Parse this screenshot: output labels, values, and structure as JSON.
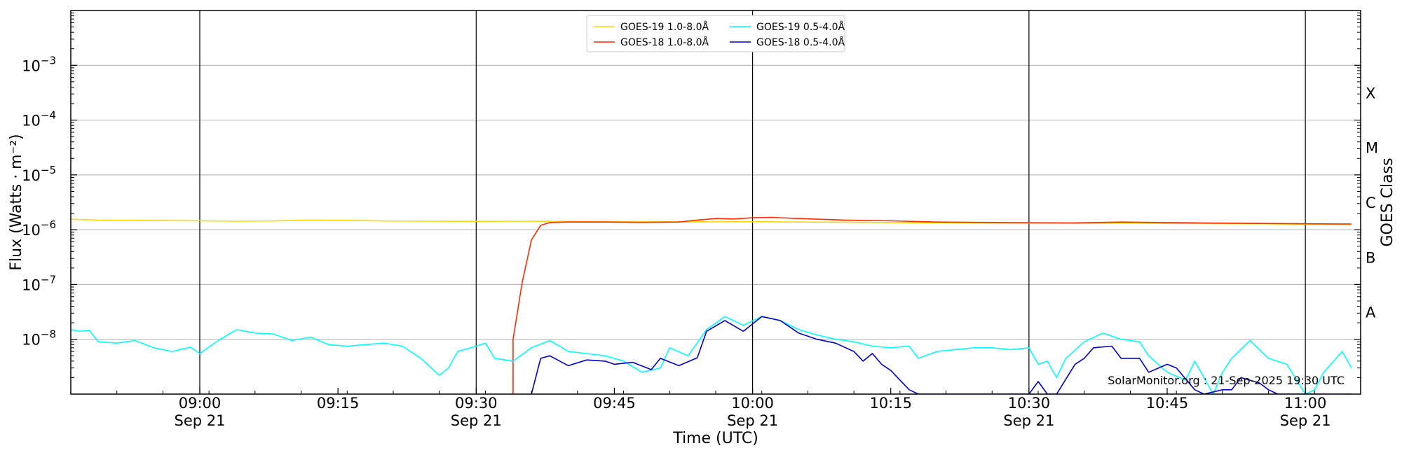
{
  "chart_data": {
    "type": "line",
    "title": "",
    "xlabel": "Time (UTC)",
    "ylabel": "Flux (Watts · m⁻²)",
    "right_axis_label": "GOES Class",
    "y_scale": "log",
    "ylim": [
      1e-09,
      0.01
    ],
    "xlim": [
      "08:46",
      "11:06"
    ],
    "grid": "horizontal",
    "legend_position": "top-center",
    "date": "Sep 21",
    "x_ticks": [
      {
        "time": "09:00",
        "label": "09:00",
        "sublabel": "Sep 21"
      },
      {
        "time": "09:15",
        "label": "09:15",
        "sublabel": ""
      },
      {
        "time": "09:30",
        "label": "09:30",
        "sublabel": "Sep 21"
      },
      {
        "time": "09:45",
        "label": "09:45",
        "sublabel": ""
      },
      {
        "time": "10:00",
        "label": "10:00",
        "sublabel": "Sep 21"
      },
      {
        "time": "10:15",
        "label": "10:15",
        "sublabel": ""
      },
      {
        "time": "10:30",
        "label": "10:30",
        "sublabel": "Sep 21"
      },
      {
        "time": "10:45",
        "label": "10:45",
        "sublabel": ""
      },
      {
        "time": "11:00",
        "label": "11:00",
        "sublabel": "Sep 21"
      }
    ],
    "vertical_lines": [
      "09:00",
      "09:30",
      "10:00",
      "10:30",
      "11:00"
    ],
    "y_ticks": [
      {
        "exp": -3,
        "base": "10",
        "power": "−3"
      },
      {
        "exp": -4,
        "base": "10",
        "power": "−4"
      },
      {
        "exp": -5,
        "base": "10",
        "power": "−5"
      },
      {
        "exp": -6,
        "base": "10",
        "power": "−6"
      },
      {
        "exp": -7,
        "base": "10",
        "power": "−7"
      },
      {
        "exp": -8,
        "base": "10",
        "power": "−8"
      }
    ],
    "goes_classes": [
      {
        "label": "X",
        "exp": -3.5
      },
      {
        "label": "M",
        "exp": -4.5
      },
      {
        "label": "C",
        "exp": -5.5
      },
      {
        "label": "B",
        "exp": -6.5
      },
      {
        "label": "A",
        "exp": -7.5
      }
    ],
    "series": [
      {
        "name": "GOES-19 1.0-8.0Å",
        "color": "#FFD700",
        "points": [
          [
            "08:46",
            1.55e-06
          ],
          [
            "08:49",
            1.5e-06
          ],
          [
            "08:53",
            1.48e-06
          ],
          [
            "08:57",
            1.46e-06
          ],
          [
            "09:00",
            1.45e-06
          ],
          [
            "09:04",
            1.43e-06
          ],
          [
            "09:08",
            1.44e-06
          ],
          [
            "09:12",
            1.5e-06
          ],
          [
            "09:16",
            1.48e-06
          ],
          [
            "09:20",
            1.44e-06
          ],
          [
            "09:25",
            1.43e-06
          ],
          [
            "09:30",
            1.42e-06
          ],
          [
            "09:35",
            1.43e-06
          ],
          [
            "09:40",
            1.42e-06
          ],
          [
            "09:45",
            1.41e-06
          ],
          [
            "09:50",
            1.4e-06
          ],
          [
            "09:55",
            1.39e-06
          ],
          [
            "10:00",
            1.4e-06
          ],
          [
            "10:05",
            1.38e-06
          ],
          [
            "10:10",
            1.37e-06
          ],
          [
            "10:15",
            1.35e-06
          ],
          [
            "10:20",
            1.34e-06
          ],
          [
            "10:25",
            1.33e-06
          ],
          [
            "10:30",
            1.32e-06
          ],
          [
            "10:35",
            1.31e-06
          ],
          [
            "10:40",
            1.32e-06
          ],
          [
            "10:45",
            1.3e-06
          ],
          [
            "10:50",
            1.29e-06
          ],
          [
            "10:55",
            1.28e-06
          ],
          [
            "11:00",
            1.26e-06
          ],
          [
            "11:05",
            1.25e-06
          ]
        ]
      },
      {
        "name": "GOES-18 1.0-8.0Å",
        "color": "#FF2A00",
        "points": [
          [
            "09:34",
            1e-09
          ],
          [
            "09:34",
            1e-08
          ],
          [
            "09:35",
            1.1e-07
          ],
          [
            "09:36",
            6.5e-07
          ],
          [
            "09:37",
            1.2e-06
          ],
          [
            "09:38",
            1.35e-06
          ],
          [
            "09:40",
            1.38e-06
          ],
          [
            "09:44",
            1.38e-06
          ],
          [
            "09:48",
            1.36e-06
          ],
          [
            "09:52",
            1.38e-06
          ],
          [
            "09:54",
            1.5e-06
          ],
          [
            "09:56",
            1.6e-06
          ],
          [
            "09:58",
            1.57e-06
          ],
          [
            "10:00",
            1.65e-06
          ],
          [
            "10:02",
            1.68e-06
          ],
          [
            "10:05",
            1.6e-06
          ],
          [
            "10:10",
            1.5e-06
          ],
          [
            "10:15",
            1.45e-06
          ],
          [
            "10:20",
            1.38e-06
          ],
          [
            "10:25",
            1.36e-06
          ],
          [
            "10:30",
            1.34e-06
          ],
          [
            "10:35",
            1.33e-06
          ],
          [
            "10:40",
            1.38e-06
          ],
          [
            "10:45",
            1.35e-06
          ],
          [
            "10:50",
            1.32e-06
          ],
          [
            "10:55",
            1.3e-06
          ],
          [
            "11:00",
            1.28e-06
          ],
          [
            "11:05",
            1.27e-06
          ]
        ]
      },
      {
        "name": "GOES-19 0.5-4.0Å",
        "color": "#00FFFF",
        "points": [
          [
            "08:46",
            1.5e-08
          ],
          [
            "08:47",
            1.4e-08
          ],
          [
            "08:48",
            1.45e-08
          ],
          [
            "08:49",
            9e-09
          ],
          [
            "08:51",
            8.5e-09
          ],
          [
            "08:53",
            9.5e-09
          ],
          [
            "08:55",
            7e-09
          ],
          [
            "08:57",
            6e-09
          ],
          [
            "08:59",
            7.2e-09
          ],
          [
            "09:00",
            5.5e-09
          ],
          [
            "09:02",
            9.5e-09
          ],
          [
            "09:04",
            1.5e-08
          ],
          [
            "09:06",
            1.3e-08
          ],
          [
            "09:08",
            1.25e-08
          ],
          [
            "09:10",
            9.5e-09
          ],
          [
            "09:12",
            1.1e-08
          ],
          [
            "09:14",
            8e-09
          ],
          [
            "09:16",
            7.5e-09
          ],
          [
            "09:18",
            8e-09
          ],
          [
            "09:20",
            8.5e-09
          ],
          [
            "09:22",
            7.5e-09
          ],
          [
            "09:24",
            4.5e-09
          ],
          [
            "09:26",
            2.2e-09
          ],
          [
            "09:27",
            3e-09
          ],
          [
            "09:28",
            6e-09
          ],
          [
            "09:30",
            7.5e-09
          ],
          [
            "09:31",
            8.5e-09
          ],
          [
            "09:32",
            4.5e-09
          ],
          [
            "09:34",
            4e-09
          ],
          [
            "09:36",
            7e-09
          ],
          [
            "09:38",
            9.5e-09
          ],
          [
            "09:40",
            6e-09
          ],
          [
            "09:42",
            5.5e-09
          ],
          [
            "09:44",
            5e-09
          ],
          [
            "09:46",
            4e-09
          ],
          [
            "09:48",
            2.5e-09
          ],
          [
            "09:50",
            3e-09
          ],
          [
            "09:51",
            7e-09
          ],
          [
            "09:53",
            5e-09
          ],
          [
            "09:55",
            1.5e-08
          ],
          [
            "09:57",
            2.6e-08
          ],
          [
            "09:59",
            1.8e-08
          ],
          [
            "10:01",
            2.6e-08
          ],
          [
            "10:03",
            2.2e-08
          ],
          [
            "10:05",
            1.5e-08
          ],
          [
            "10:07",
            1.2e-08
          ],
          [
            "10:09",
            1e-08
          ],
          [
            "10:11",
            9e-09
          ],
          [
            "10:13",
            7.5e-09
          ],
          [
            "10:15",
            7e-09
          ],
          [
            "10:17",
            7.5e-09
          ],
          [
            "10:18",
            4.5e-09
          ],
          [
            "10:20",
            6e-09
          ],
          [
            "10:22",
            6.5e-09
          ],
          [
            "10:24",
            7e-09
          ],
          [
            "10:26",
            7e-09
          ],
          [
            "10:28",
            6.5e-09
          ],
          [
            "10:30",
            7e-09
          ],
          [
            "10:31",
            3.5e-09
          ],
          [
            "10:32",
            4e-09
          ],
          [
            "10:33",
            2e-09
          ],
          [
            "10:34",
            4.5e-09
          ],
          [
            "10:36",
            9e-09
          ],
          [
            "10:38",
            1.3e-08
          ],
          [
            "10:40",
            1e-08
          ],
          [
            "10:42",
            9e-09
          ],
          [
            "10:43",
            5e-09
          ],
          [
            "10:45",
            2.5e-09
          ],
          [
            "10:47",
            1.8e-09
          ],
          [
            "10:48",
            4e-09
          ],
          [
            "10:50",
            1e-09
          ],
          [
            "10:51",
            2.5e-09
          ],
          [
            "10:52",
            4.5e-09
          ],
          [
            "10:54",
            9.5e-09
          ],
          [
            "10:56",
            4.5e-09
          ],
          [
            "10:58",
            3.5e-09
          ],
          [
            "11:00",
            1e-09
          ],
          [
            "11:01",
            1.2e-09
          ],
          [
            "11:02",
            2.5e-09
          ],
          [
            "11:04",
            6e-09
          ],
          [
            "11:05",
            3e-09
          ]
        ]
      },
      {
        "name": "GOES-18 0.5-4.0Å",
        "color": "#0000CC",
        "points": [
          [
            "09:36",
            1e-09
          ],
          [
            "09:37",
            4.5e-09
          ],
          [
            "09:38",
            5e-09
          ],
          [
            "09:40",
            3.3e-09
          ],
          [
            "09:42",
            4.2e-09
          ],
          [
            "09:44",
            4e-09
          ],
          [
            "09:45",
            3.5e-09
          ],
          [
            "09:47",
            3.8e-09
          ],
          [
            "09:49",
            2.8e-09
          ],
          [
            "09:50",
            4.5e-09
          ],
          [
            "09:52",
            3.3e-09
          ],
          [
            "09:54",
            4.6e-09
          ],
          [
            "09:55",
            1.4e-08
          ],
          [
            "09:57",
            2.2e-08
          ],
          [
            "09:59",
            1.4e-08
          ],
          [
            "10:01",
            2.6e-08
          ],
          [
            "10:03",
            2.2e-08
          ],
          [
            "10:05",
            1.3e-08
          ],
          [
            "10:07",
            1e-08
          ],
          [
            "10:09",
            8.5e-09
          ],
          [
            "10:11",
            6e-09
          ],
          [
            "10:12",
            4e-09
          ],
          [
            "10:13",
            5.5e-09
          ],
          [
            "10:14",
            3.5e-09
          ],
          [
            "10:15",
            2.7e-09
          ],
          [
            "10:17",
            1.2e-09
          ],
          [
            "10:18",
            1e-09
          ],
          [
            "10:25",
            1e-09
          ],
          [
            "10:30",
            1e-09
          ],
          [
            "10:31",
            1.7e-09
          ],
          [
            "10:32",
            1e-09
          ],
          [
            "10:33",
            1e-09
          ],
          [
            "10:35",
            3.5e-09
          ],
          [
            "10:36",
            4.5e-09
          ],
          [
            "10:37",
            7e-09
          ],
          [
            "10:39",
            7.5e-09
          ],
          [
            "10:40",
            4.5e-09
          ],
          [
            "10:42",
            4.5e-09
          ],
          [
            "10:43",
            2.5e-09
          ],
          [
            "10:45",
            3.5e-09
          ],
          [
            "10:46",
            3e-09
          ],
          [
            "10:48",
            1.2e-09
          ],
          [
            "10:49",
            1e-09
          ],
          [
            "10:51",
            1.2e-09
          ],
          [
            "10:52",
            1.2e-09
          ],
          [
            "10:53",
            2e-09
          ],
          [
            "10:55",
            1.6e-09
          ],
          [
            "10:56",
            1.2e-09
          ],
          [
            "10:57",
            1e-09
          ],
          [
            "11:05",
            1e-09
          ]
        ]
      }
    ],
    "annotation": "SolarMonitor.org : 21-Sep-2025 19:30 UTC"
  }
}
